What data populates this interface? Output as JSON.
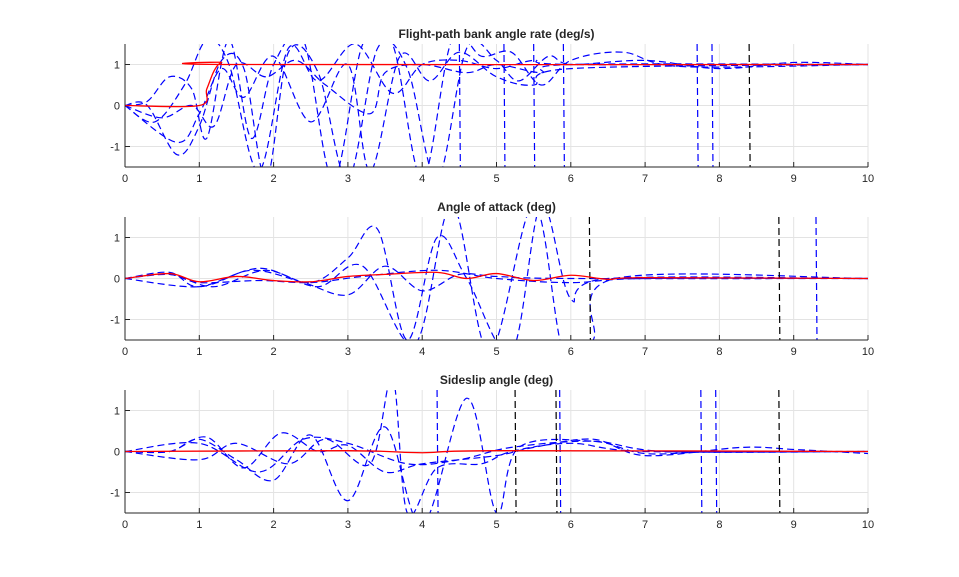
{
  "colors": {
    "reference": "#ff0000",
    "response": "#0000ff",
    "outlier": "#000000",
    "grid": "#e3e3e3",
    "axis": "#262626"
  },
  "chart_data": [
    {
      "type": "line",
      "title": "Flight-path bank angle rate (deg/s)",
      "xlim": [
        0,
        10
      ],
      "ylim": [
        -1.5,
        1.5
      ],
      "xticks": [
        "0",
        "1",
        "2",
        "3",
        "4",
        "5",
        "6",
        "7",
        "8",
        "9",
        "10"
      ],
      "yticks": [
        "1",
        "0",
        "-1"
      ],
      "ytick_values": [
        1,
        0,
        -1
      ],
      "grid": true,
      "reference": [
        [
          0,
          0
        ],
        [
          1,
          0
        ],
        [
          1.1,
          0.4
        ],
        [
          1.2,
          0.85
        ],
        [
          1.3,
          1.05
        ],
        [
          1.45,
          1
        ],
        [
          10,
          1
        ]
      ],
      "series": [
        [
          [
            0,
            0
          ],
          [
            0.3,
            0
          ],
          [
            0.7,
            -1.2
          ],
          [
            1,
            -0.5
          ],
          [
            1.3,
            1.1
          ],
          [
            1.6,
            0.9
          ],
          [
            1.9,
            -1.8
          ],
          [
            2.2,
            1.3
          ],
          [
            2.6,
            0.8
          ],
          [
            3,
            -1.8
          ],
          [
            3.4,
            1.4
          ],
          [
            3.8,
            0.9
          ],
          [
            4.2,
            -1.8
          ],
          [
            4.6,
            1.4
          ],
          [
            5,
            1.1
          ],
          [
            5.3,
            0.6
          ],
          [
            5.7,
            1.2
          ],
          [
            6,
            1
          ],
          [
            7,
            1.1
          ],
          [
            8,
            0.9
          ],
          [
            9,
            1.05
          ],
          [
            10,
            1
          ]
        ],
        [
          [
            0,
            0
          ],
          [
            0.3,
            0.1
          ],
          [
            0.6,
            0.7
          ],
          [
            0.9,
            0.4
          ],
          [
            1.1,
            -0.8
          ],
          [
            1.4,
            1.6
          ],
          [
            1.7,
            -0.8
          ],
          [
            2,
            1
          ],
          [
            2.4,
            1.6
          ],
          [
            2.8,
            -1.8
          ],
          [
            3.2,
            1.5
          ],
          [
            3.6,
            1.5
          ],
          [
            4,
            -1.8
          ],
          [
            4.4,
            1.6
          ],
          [
            4.8,
            1.2
          ],
          [
            5.2,
            1.3
          ],
          [
            5.6,
            0.5
          ],
          [
            6,
            1.1
          ],
          [
            6.7,
            1.3
          ],
          [
            7.5,
            0.95
          ],
          [
            10,
            1
          ]
        ],
        [
          [
            0,
            0
          ],
          [
            0.4,
            -0.4
          ],
          [
            0.8,
            0.5
          ],
          [
            1.1,
            1.6
          ],
          [
            1.4,
            1
          ],
          [
            1.8,
            -1.6
          ],
          [
            2.2,
            1.4
          ],
          [
            2.6,
            0.6
          ],
          [
            3.1,
            1.5
          ],
          [
            3.6,
            0.3
          ],
          [
            4,
            1
          ],
          [
            4.5,
            1.1
          ],
          [
            5,
            0.9
          ],
          [
            5.5,
            1.1
          ],
          [
            6,
            1
          ],
          [
            10,
            1
          ]
        ],
        [
          [
            0,
            0
          ],
          [
            0.5,
            -0.3
          ],
          [
            0.9,
            0
          ],
          [
            1.2,
            -0.5
          ],
          [
            1.5,
            1
          ],
          [
            1.9,
            0.7
          ],
          [
            2.3,
            1.1
          ],
          [
            2.7,
            0.5
          ],
          [
            3.3,
            -0.2
          ],
          [
            3.5,
            0.8
          ],
          [
            4,
            1
          ],
          [
            4.6,
            0.8
          ],
          [
            5,
            1
          ],
          [
            5.6,
            0.8
          ],
          [
            6,
            1
          ],
          [
            10,
            1
          ]
        ],
        [
          [
            0,
            0
          ],
          [
            0.7,
            -0.9
          ],
          [
            1,
            -0.2
          ],
          [
            1.3,
            0.9
          ],
          [
            1.6,
            0.2
          ],
          [
            2,
            1.2
          ],
          [
            2.5,
            -0.4
          ],
          [
            3,
            1
          ],
          [
            3.3,
            -1.6
          ],
          [
            3.7,
            1.2
          ],
          [
            4.1,
            0.6
          ],
          [
            4.5,
            1.3
          ],
          [
            5,
            0.7
          ],
          [
            5.5,
            0.5
          ],
          [
            6,
            0.9
          ],
          [
            10,
            1
          ]
        ]
      ],
      "spikes": [
        [
          4.5,
          "response"
        ],
        [
          5.1,
          "response"
        ],
        [
          5.5,
          "response"
        ],
        [
          5.9,
          "response"
        ],
        [
          7.7,
          "response"
        ],
        [
          7.9,
          "response"
        ],
        [
          8.4,
          "outlier"
        ]
      ]
    },
    {
      "type": "line",
      "title": "Angle of attack (deg)",
      "xlim": [
        0,
        10
      ],
      "ylim": [
        -1.5,
        1.5
      ],
      "xticks": [
        "0",
        "1",
        "2",
        "3",
        "4",
        "5",
        "6",
        "7",
        "8",
        "9",
        "10"
      ],
      "yticks": [
        "1",
        "0",
        "-1"
      ],
      "ytick_values": [
        1,
        0,
        -1
      ],
      "grid": true,
      "reference": [
        [
          0,
          0
        ],
        [
          0.6,
          0.12
        ],
        [
          1,
          -0.08
        ],
        [
          1.5,
          0.05
        ],
        [
          2,
          -0.05
        ],
        [
          2.5,
          -0.08
        ],
        [
          3,
          0.05
        ],
        [
          3.5,
          0.1
        ],
        [
          4.2,
          0.15
        ],
        [
          4.6,
          0
        ],
        [
          5,
          0.12
        ],
        [
          5.5,
          -0.05
        ],
        [
          6,
          0.08
        ],
        [
          6.5,
          -0.02
        ],
        [
          7,
          0.02
        ],
        [
          10,
          0
        ]
      ],
      "series": [
        [
          [
            0,
            0
          ],
          [
            0.6,
            0.15
          ],
          [
            1,
            -0.2
          ],
          [
            1.8,
            0.25
          ],
          [
            2.5,
            -0.1
          ],
          [
            3,
            0.5
          ],
          [
            3.4,
            1.2
          ],
          [
            3.8,
            -1.5
          ],
          [
            4.2,
            1
          ],
          [
            4.6,
            0
          ],
          [
            5.2,
            -1.8
          ],
          [
            5.6,
            1.8
          ],
          [
            6,
            -0.5
          ],
          [
            6.5,
            0
          ],
          [
            10,
            0
          ]
        ],
        [
          [
            0,
            0
          ],
          [
            0.6,
            0.1
          ],
          [
            1.2,
            -0.2
          ],
          [
            1.9,
            0.2
          ],
          [
            2.6,
            -0.2
          ],
          [
            3.2,
            0.3
          ],
          [
            3.9,
            -1.6
          ],
          [
            4.4,
            1.8
          ],
          [
            4.9,
            -1.8
          ],
          [
            5.5,
            1.8
          ],
          [
            5.9,
            -1.8
          ],
          [
            6.3,
            -1.5
          ],
          [
            6.6,
            0
          ],
          [
            10,
            0
          ]
        ],
        [
          [
            0,
            0
          ],
          [
            0.6,
            0.1
          ],
          [
            1,
            -0.1
          ],
          [
            1.8,
            -0.05
          ],
          [
            2.5,
            -0.1
          ],
          [
            3.2,
            0.05
          ],
          [
            4.2,
            0.2
          ],
          [
            5,
            0
          ],
          [
            6,
            -0.1
          ],
          [
            7,
            0
          ],
          [
            10,
            0
          ]
        ],
        [
          [
            0,
            0
          ],
          [
            1,
            -0.2
          ],
          [
            1.7,
            0.2
          ],
          [
            2.4,
            -0.1
          ],
          [
            3,
            -0.4
          ],
          [
            3.5,
            0.3
          ],
          [
            4,
            -0.3
          ],
          [
            4.5,
            0.1
          ],
          [
            5,
            0.05
          ],
          [
            6,
            0
          ],
          [
            10,
            0
          ]
        ]
      ],
      "spikes": [
        [
          6.25,
          "outlier"
        ],
        [
          8.8,
          "outlier"
        ],
        [
          9.3,
          "response"
        ]
      ]
    },
    {
      "type": "line",
      "title": "Sideslip angle (deg)",
      "xlim": [
        0,
        10
      ],
      "ylim": [
        -1.5,
        1.5
      ],
      "xticks": [
        "0",
        "1",
        "2",
        "3",
        "4",
        "5",
        "6",
        "7",
        "8",
        "9",
        "10"
      ],
      "yticks": [
        "1",
        "0",
        "-1"
      ],
      "ytick_values": [
        1,
        0,
        -1
      ],
      "grid": true,
      "reference": [
        [
          0,
          0
        ],
        [
          3,
          0.02
        ],
        [
          4,
          -0.03
        ],
        [
          5,
          0.02
        ],
        [
          10,
          0
        ]
      ],
      "series": [
        [
          [
            0,
            0
          ],
          [
            0.6,
            0
          ],
          [
            1,
            0.3
          ],
          [
            1.5,
            -0.2
          ],
          [
            2,
            -0.7
          ],
          [
            2.5,
            0.4
          ],
          [
            3,
            -1.2
          ],
          [
            3.5,
            0.6
          ],
          [
            4,
            -1.8
          ],
          [
            4.6,
            1.3
          ],
          [
            5,
            -1.5
          ],
          [
            5.3,
            0.1
          ],
          [
            6.3,
            0.25
          ],
          [
            7,
            -0.05
          ],
          [
            8,
            0
          ],
          [
            10,
            0
          ]
        ],
        [
          [
            0,
            0
          ],
          [
            0.6,
            0
          ],
          [
            1.1,
            0.35
          ],
          [
            1.6,
            -0.4
          ],
          [
            2.1,
            0.45
          ],
          [
            2.6,
            0
          ],
          [
            3,
            0.15
          ],
          [
            3.5,
            -0.5
          ],
          [
            4,
            -0.3
          ],
          [
            5,
            -0.1
          ],
          [
            5.5,
            0.1
          ],
          [
            6.3,
            0.3
          ],
          [
            7,
            -0.1
          ],
          [
            8.3,
            0.1
          ],
          [
            9,
            0.05
          ],
          [
            10,
            -0.05
          ]
        ],
        [
          [
            0,
            0
          ],
          [
            1,
            -0.2
          ],
          [
            1.5,
            0.2
          ],
          [
            2.2,
            -0.3
          ],
          [
            2.7,
            0.3
          ],
          [
            3.3,
            -0.3
          ],
          [
            3.6,
            1.8
          ],
          [
            3.8,
            -1.5
          ],
          [
            4.2,
            -0.4
          ],
          [
            4.8,
            -0.3
          ],
          [
            5.2,
            0
          ],
          [
            6,
            0.2
          ],
          [
            7,
            0
          ],
          [
            10,
            0
          ]
        ],
        [
          [
            0,
            0
          ],
          [
            1,
            0.2
          ],
          [
            1.8,
            -0.5
          ],
          [
            2.4,
            0.3
          ],
          [
            3,
            0.2
          ],
          [
            3.8,
            -0.3
          ],
          [
            4.5,
            -0.2
          ],
          [
            5.2,
            0.1
          ],
          [
            6.3,
            0.25
          ],
          [
            7.3,
            0
          ],
          [
            10,
            0
          ]
        ]
      ],
      "spikes": [
        [
          4.2,
          "response"
        ],
        [
          5.25,
          "outlier"
        ],
        [
          5.8,
          "outlier"
        ],
        [
          5.85,
          "response"
        ],
        [
          7.75,
          "response"
        ],
        [
          7.95,
          "response"
        ],
        [
          8.8,
          "outlier"
        ]
      ]
    }
  ]
}
